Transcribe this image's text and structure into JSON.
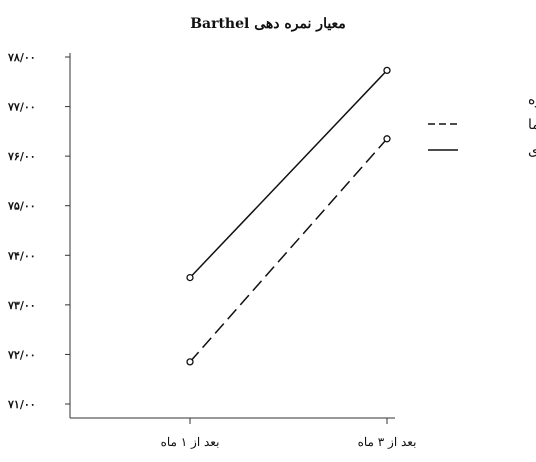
{
  "chart_data": {
    "type": "line",
    "title": "معیار نمره دهی Barthel",
    "categories": [
      "بعد از ۱ ماه",
      "بعد از ۳ ماه"
    ],
    "ylim": [
      71,
      78
    ],
    "y_ticks": [
      71,
      72,
      73,
      74,
      75,
      76,
      77,
      78
    ],
    "y_tick_labels": [
      "۷۱/۰۰",
      "۷۲/۰۰",
      "۷۳/۰۰",
      "۷۴/۰۰",
      "۷۵/۰۰",
      "۷۶/۰۰",
      "۷۷/۰۰",
      "۷۸/۰۰"
    ],
    "legend": {
      "title": "گروه",
      "position": "right"
    },
    "series": [
      {
        "name": "دارونما",
        "values": [
          71.85,
          76.35
        ],
        "line_style": "dashed",
        "color": "#111111"
      },
      {
        "name": "مداخله ای",
        "values": [
          73.55,
          77.73
        ],
        "line_style": "solid",
        "color": "#111111"
      }
    ],
    "grid": false
  }
}
